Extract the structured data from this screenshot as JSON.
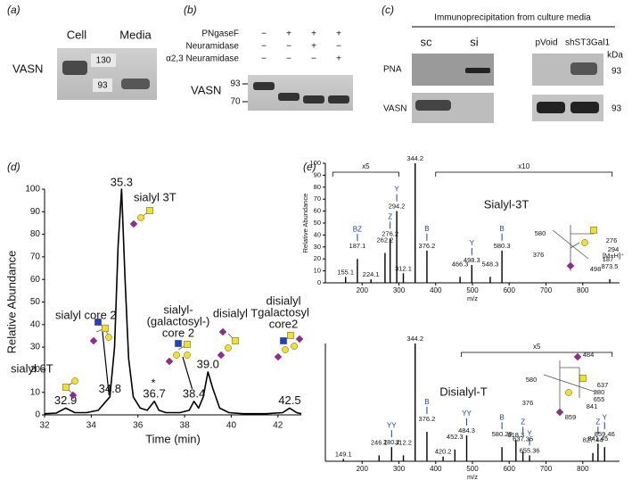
{
  "panels": {
    "a": {
      "label": "(a)",
      "columns": [
        "Cell",
        "Media"
      ],
      "row": "VASN",
      "markers": [
        "130",
        "93"
      ]
    },
    "b": {
      "label": "(b)",
      "treatments": [
        {
          "name": "PNgaseF",
          "signs": [
            "−",
            "+",
            "+",
            "+"
          ]
        },
        {
          "name": "Neuramidase",
          "signs": [
            "−",
            "−",
            "+",
            "−"
          ]
        },
        {
          "name": "α2,3 Neuramidase",
          "signs": [
            "−",
            "−",
            "−",
            "+"
          ]
        }
      ],
      "row": "VASN",
      "markers": [
        "93",
        "70"
      ]
    },
    "c": {
      "label": "(c)",
      "title": "Immunoprecipitation from culture media",
      "columns": [
        "sc",
        "si",
        "pVoid",
        "shST3Gal1"
      ],
      "rows": [
        "PNA",
        "VASN"
      ],
      "unit": "kDa",
      "markers": [
        "93",
        "93"
      ]
    },
    "d": {
      "label": "(d)"
    },
    "e": {
      "label": "(e)"
    }
  },
  "chart_data": [
    {
      "type": "line",
      "x_label": "Time (min)",
      "y_label": "Relative Abundance",
      "color": "#000000",
      "x": [
        32,
        32.5,
        32.9,
        33.3,
        33.8,
        34.3,
        34.8,
        35.0,
        35.15,
        35.3,
        35.45,
        35.6,
        35.8,
        36.1,
        36.4,
        36.7,
        36.9,
        37.2,
        37.8,
        38.2,
        38.4,
        38.6,
        38.8,
        39.0,
        39.2,
        39.5,
        39.9,
        40.5,
        41.5,
        42.2,
        42.5,
        42.8,
        43
      ],
      "values": [
        0.5,
        0.8,
        3,
        1,
        1,
        2,
        8,
        30,
        75,
        100,
        60,
        25,
        8,
        3,
        2,
        6,
        2,
        1,
        1,
        2,
        6,
        3,
        8,
        19,
        12,
        3,
        1,
        0.5,
        0.5,
        1,
        3,
        1,
        0.5
      ],
      "peaks": [
        32.9,
        34.8,
        35.3,
        36.7,
        38.4,
        {
          "value": 39.0,
          "label": "39.0"
        },
        42.5
      ],
      "peak_heights": [
        3,
        8,
        100,
        6,
        6,
        19,
        3
      ],
      "peak_names": [
        [
          "sialyl 6T"
        ],
        [
          "sialyl core 2"
        ],
        [
          "sialyl 3T"
        ],
        [
          "*"
        ],
        [
          "sialyl-",
          "(galactosyl-)",
          "core 2"
        ],
        [
          "disialyl T"
        ],
        [
          "disialyl",
          "galactosyl",
          "core2"
        ]
      ],
      "xlim": [
        32,
        43
      ],
      "xticks": [
        32,
        34,
        36,
        38,
        40,
        42
      ],
      "ylim": [
        0,
        100
      ],
      "yticks": [
        0,
        10,
        20,
        30,
        40,
        50,
        60,
        70,
        80,
        90,
        100
      ]
    },
    {
      "type": "bar",
      "title": "Sialyl-3T",
      "x_label": "m/z",
      "y_label": "Relative Abundance",
      "color": "#000000",
      "ion_color": "#1f3bb3",
      "x": [
        155.1,
        187.1,
        224.1,
        262.2,
        276.2,
        294.2,
        312.1,
        344.2,
        376.2,
        466.3,
        498.3,
        548.3,
        580.3,
        873.5
      ],
      "values": [
        5,
        20,
        3,
        25,
        37,
        60,
        8,
        100,
        27,
        5,
        15,
        5,
        27,
        3
      ],
      "ion_labels": [
        null,
        "BZ",
        null,
        null,
        "Z",
        "Y",
        null,
        null,
        "B",
        null,
        "Y",
        null,
        "B",
        null
      ],
      "precursor_label": "[M+H]⁺",
      "scale_brackets": [
        {
          "label": "x5",
          "range": [
            120,
            300
          ]
        },
        {
          "label": "x10",
          "range": [
            400,
            880
          ]
        }
      ],
      "fragments": [
        "580",
        "276",
        "294",
        "376",
        "187",
        "498"
      ],
      "xlim": [
        100,
        900
      ],
      "xticks": [
        200,
        300,
        400,
        500,
        600,
        700,
        800
      ],
      "ylim": [
        0,
        100
      ],
      "yticks": [
        0,
        10,
        20,
        30,
        40,
        50,
        60,
        70,
        80,
        90,
        100
      ]
    },
    {
      "type": "bar",
      "title": "Disialyl-T",
      "x_label": "m/z",
      "color": "#000000",
      "ion_color": "#1f3bb3",
      "x": [
        149.1,
        246.1,
        280.2,
        312.2,
        344.2,
        376.2,
        420.2,
        452.3,
        484.3,
        580.29,
        618.3,
        637.35,
        655.36,
        827.44,
        841.45,
        859.46
      ],
      "values": [
        2,
        5,
        12,
        5,
        100,
        25,
        4,
        10,
        22,
        12,
        18,
        8,
        5,
        7,
        15,
        12
      ],
      "ion_labels": [
        null,
        null,
        "YY",
        null,
        null,
        "B",
        null,
        null,
        "YY",
        "B",
        null,
        "Z",
        "Y",
        null,
        "Z",
        "Y"
      ],
      "scale_brackets": [
        {
          "label": "x5",
          "range": [
            470,
            880
          ]
        }
      ],
      "fragments": [
        "484",
        "580",
        "637",
        "280",
        "655",
        "376",
        "841",
        "859"
      ],
      "xlim": [
        100,
        900
      ],
      "xticks": [
        200,
        300,
        400,
        500,
        600,
        700,
        800
      ],
      "ylim": [
        0,
        100
      ]
    }
  ]
}
